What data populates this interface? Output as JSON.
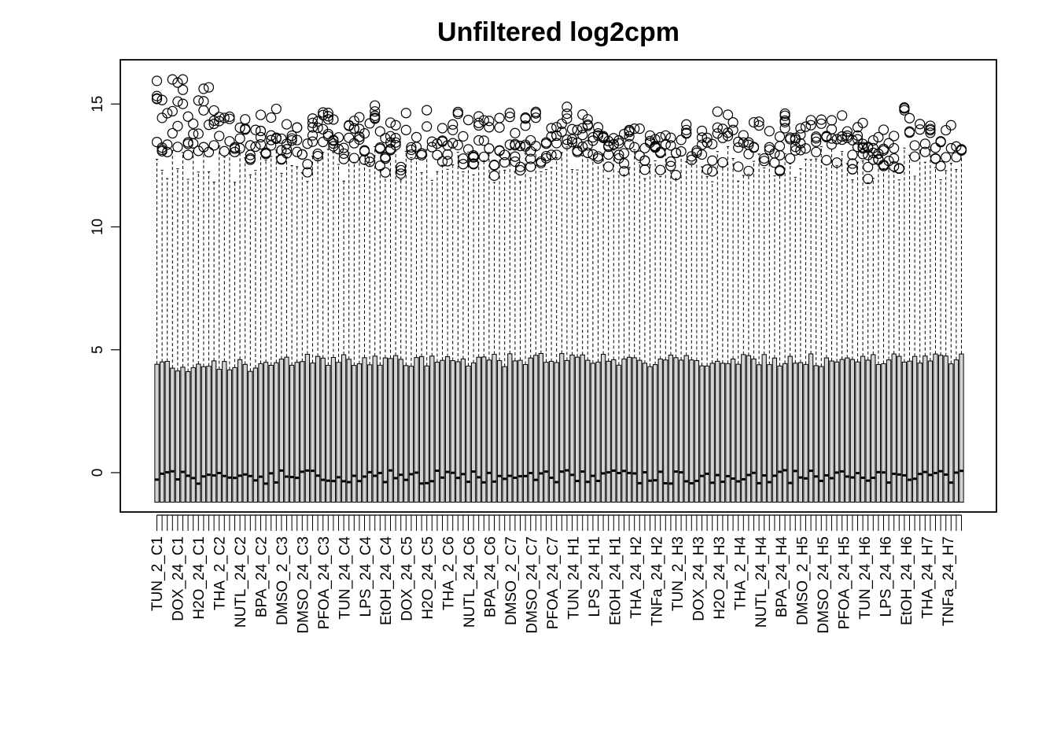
{
  "chart_data": {
    "type": "box",
    "title": "Unfiltered log2cpm",
    "xlabel": "",
    "ylabel": "",
    "ylim": [
      -1.6,
      16.8
    ],
    "yticks": [
      0,
      5,
      10,
      15
    ],
    "n_samples": 156,
    "visible_x_labels": [
      "TUN_2_C1",
      "DOX_24_C1",
      "H2O_24_C1",
      "THA_2_C2",
      "NUTL_24_C2",
      "BPA_24_C2",
      "DMSO_2_C3",
      "DMSO_24_C3",
      "PFOA_24_C3",
      "TUN_24_C4",
      "LPS_24_C4",
      "EtOH_24_C4",
      "DOX_24_C5",
      "H2O_24_C5",
      "THA_2_C6",
      "NUTL_24_C6",
      "BPA_24_C6",
      "DMSO_2_C7",
      "DMSO_24_C7",
      "PFOA_24_C7",
      "TUN_24_H1",
      "LPS_24_H1",
      "EtOH_24_H1",
      "THA_24_H2",
      "TNFa_24_H2",
      "TUN_2_H3",
      "DOX_24_H3",
      "H2O_24_H3",
      "THA_2_H4",
      "NUTL_24_H4",
      "BPA_24_H4",
      "DMSO_2_H5",
      "DMSO_24_H5",
      "PFOA_24_H5",
      "TUN_24_H6",
      "LPS_24_H6",
      "EtOH_24_H6",
      "THA_24_H7",
      "TNFa_24_H7"
    ],
    "summary": {
      "lower_whisker": -1.2,
      "q1": -1.2,
      "median_range": [
        -0.6,
        0.6
      ],
      "q3_range": [
        3.7,
        4.7
      ],
      "upper_whisker_range": [
        11.5,
        13.8
      ],
      "outlier_range": [
        11.0,
        16.0
      ]
    }
  }
}
